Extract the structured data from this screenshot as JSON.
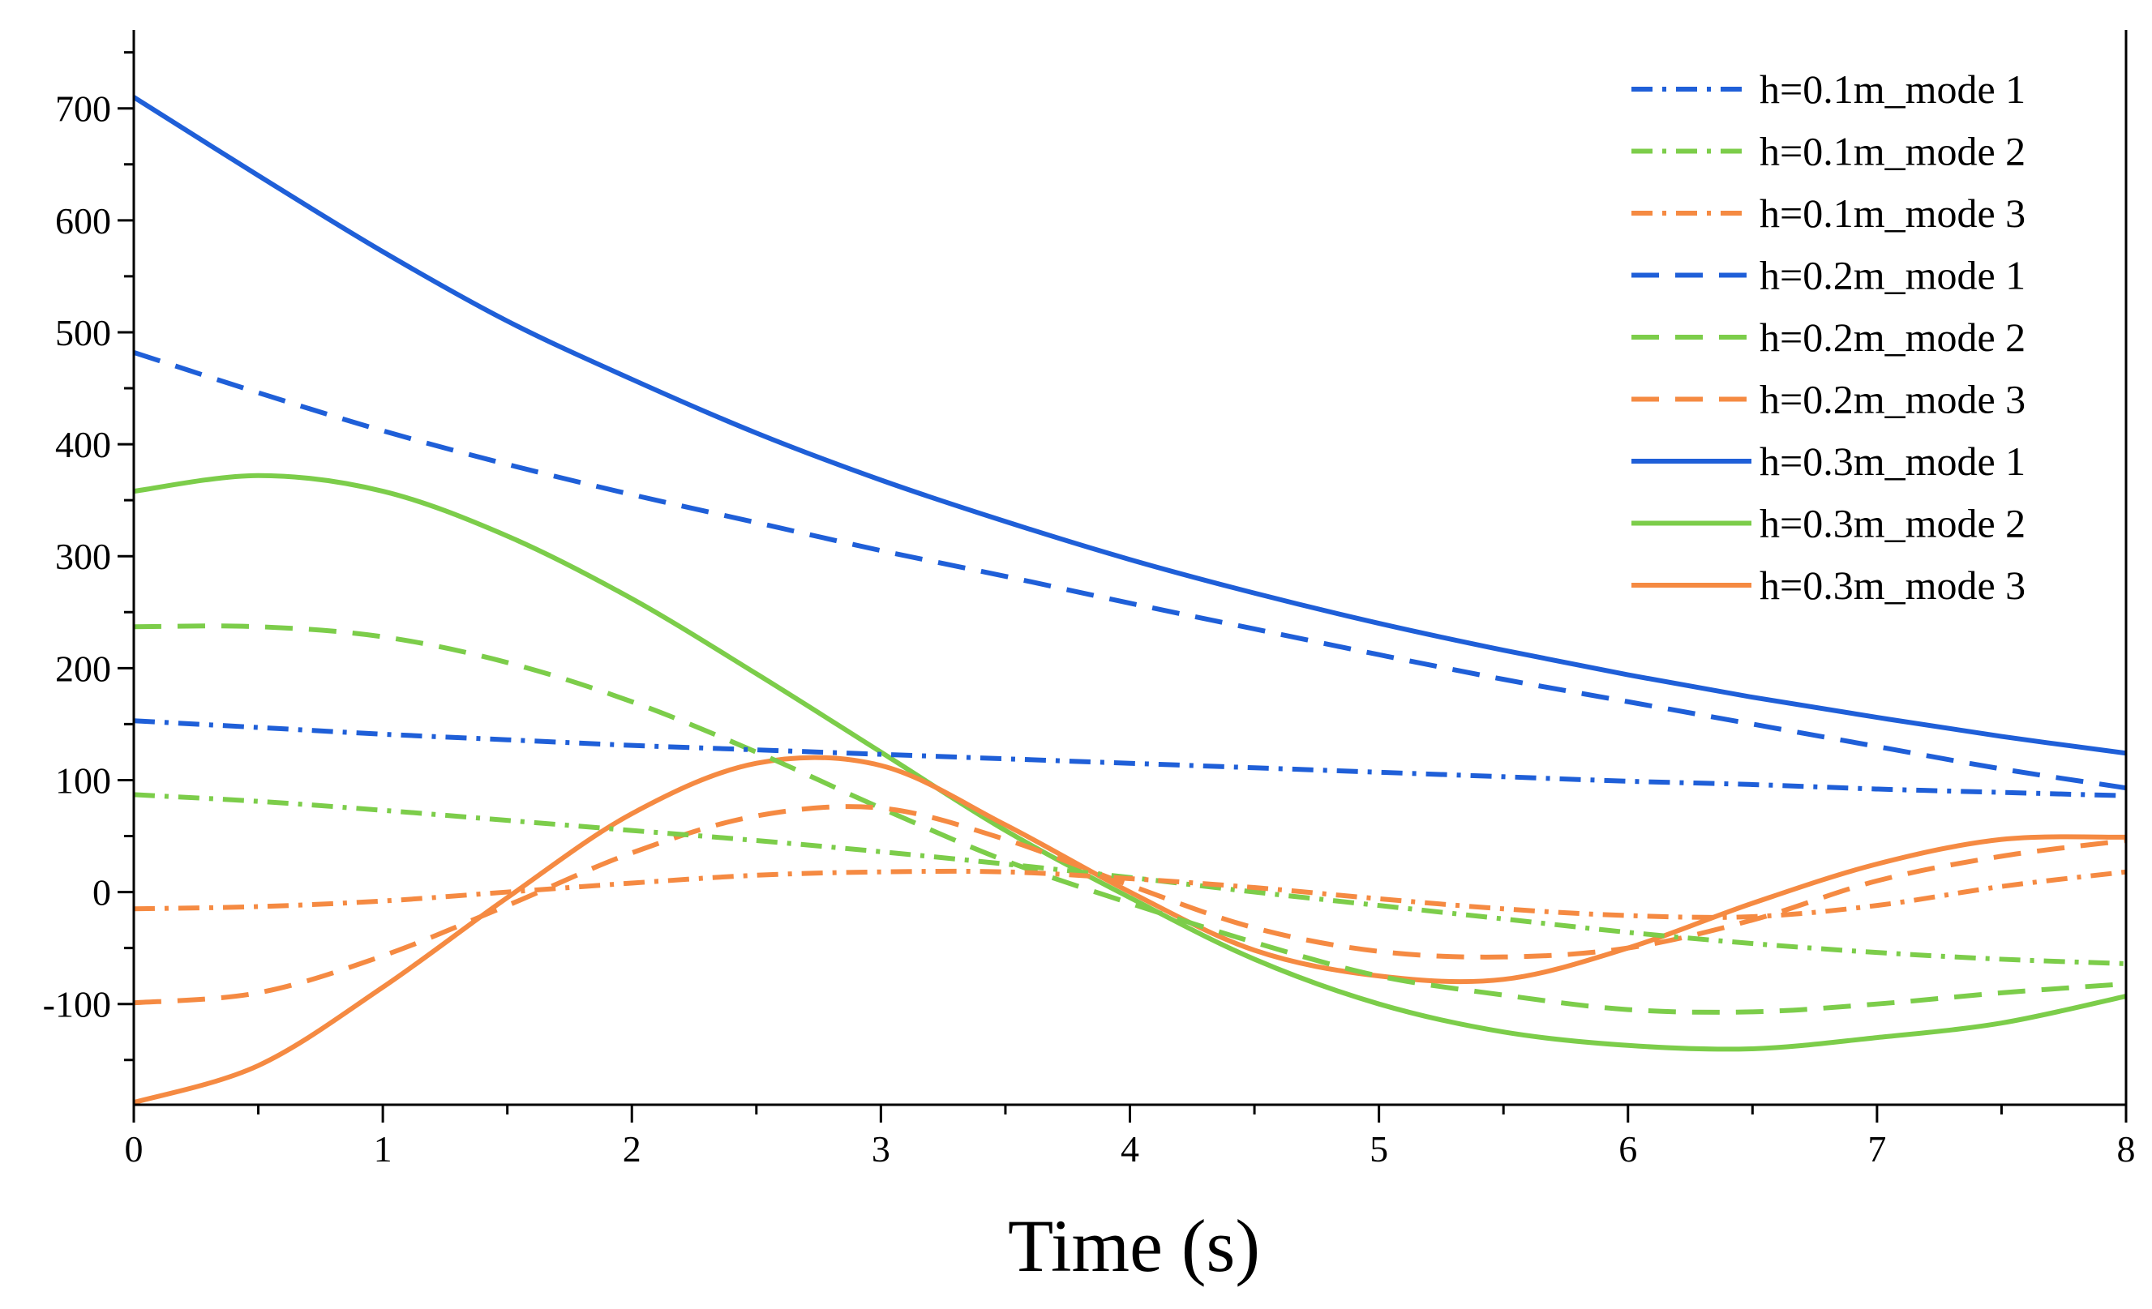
{
  "chart_data": {
    "type": "line",
    "title": "",
    "xlabel": "Time (s)",
    "ylabel": "",
    "xlim": [
      0,
      8
    ],
    "ylim": [
      -190,
      770
    ],
    "x_ticks": [
      0,
      1,
      2,
      3,
      4,
      5,
      6,
      7,
      8
    ],
    "x_tick_labels": [
      "0",
      "1",
      "2",
      "3",
      "4",
      "5",
      "6",
      "7",
      "8"
    ],
    "y_ticks": [
      -100,
      0,
      100,
      200,
      300,
      400,
      500,
      600,
      700
    ],
    "y_tick_labels": [
      "-100",
      "0",
      "100",
      "200",
      "300",
      "400",
      "500",
      "600",
      "700"
    ],
    "grid": false,
    "legend_position": "top-right",
    "colors": {
      "mode1": "#1f5fd8",
      "mode2": "#7ccd4a",
      "mode3": "#f58a42"
    },
    "x": [
      0,
      0.5,
      1,
      1.5,
      2,
      2.5,
      3,
      3.5,
      4,
      4.5,
      5,
      5.5,
      6,
      6.5,
      7,
      7.5,
      8
    ],
    "series": [
      {
        "name": "h=0.1m_mode 1",
        "color": "#1f5fd8",
        "dash": "dashdot",
        "values": [
          153,
          147,
          141,
          136,
          131,
          127,
          123,
          119,
          115,
          111,
          107,
          103,
          99,
          96,
          92,
          89,
          86
        ]
      },
      {
        "name": "h=0.1m_mode 2",
        "color": "#7ccd4a",
        "dash": "dashdot",
        "values": [
          87,
          81,
          73,
          64,
          55,
          46,
          36,
          25,
          13,
          0,
          -12,
          -24,
          -36,
          -46,
          -54,
          -60,
          -64
        ]
      },
      {
        "name": "h=0.1m_mode 3",
        "color": "#f58a42",
        "dash": "dashdot",
        "values": [
          -15,
          -13,
          -8,
          0,
          8,
          15,
          18,
          18,
          12,
          4,
          -6,
          -15,
          -21,
          -22,
          -12,
          5,
          18
        ]
      },
      {
        "name": "h=0.2m_mode 1",
        "color": "#1f5fd8",
        "dash": "dashed",
        "values": [
          482,
          446,
          412,
          382,
          355,
          330,
          305,
          282,
          258,
          235,
          212,
          190,
          170,
          150,
          130,
          110,
          93
        ]
      },
      {
        "name": "h=0.2m_mode 2",
        "color": "#7ccd4a",
        "dash": "dashed",
        "values": [
          237,
          237,
          228,
          205,
          170,
          125,
          75,
          28,
          -10,
          -45,
          -75,
          -92,
          -105,
          -107,
          -100,
          -90,
          -82
        ]
      },
      {
        "name": "h=0.2m_mode 3",
        "color": "#f58a42",
        "dash": "dashed",
        "values": [
          -99,
          -90,
          -57,
          -12,
          35,
          68,
          75,
          47,
          6,
          -32,
          -53,
          -58,
          -50,
          -25,
          10,
          32,
          46
        ]
      },
      {
        "name": "h=0.3m_mode 1",
        "color": "#1f5fd8",
        "dash": "solid",
        "values": [
          710,
          640,
          572,
          510,
          458,
          410,
          368,
          331,
          297,
          267,
          240,
          216,
          194,
          174,
          156,
          139,
          124
        ]
      },
      {
        "name": "h=0.3m_mode 2",
        "color": "#7ccd4a",
        "dash": "solid",
        "values": [
          358,
          372,
          358,
          318,
          262,
          195,
          125,
          55,
          -5,
          -60,
          -100,
          -125,
          -137,
          -140,
          -130,
          -117,
          -93
        ]
      },
      {
        "name": "h=0.3m_mode 3",
        "color": "#f58a42",
        "dash": "solid",
        "values": [
          -188,
          -155,
          -85,
          -5,
          70,
          115,
          113,
          60,
          0,
          -52,
          -75,
          -78,
          -50,
          -10,
          25,
          47,
          49
        ]
      }
    ]
  }
}
